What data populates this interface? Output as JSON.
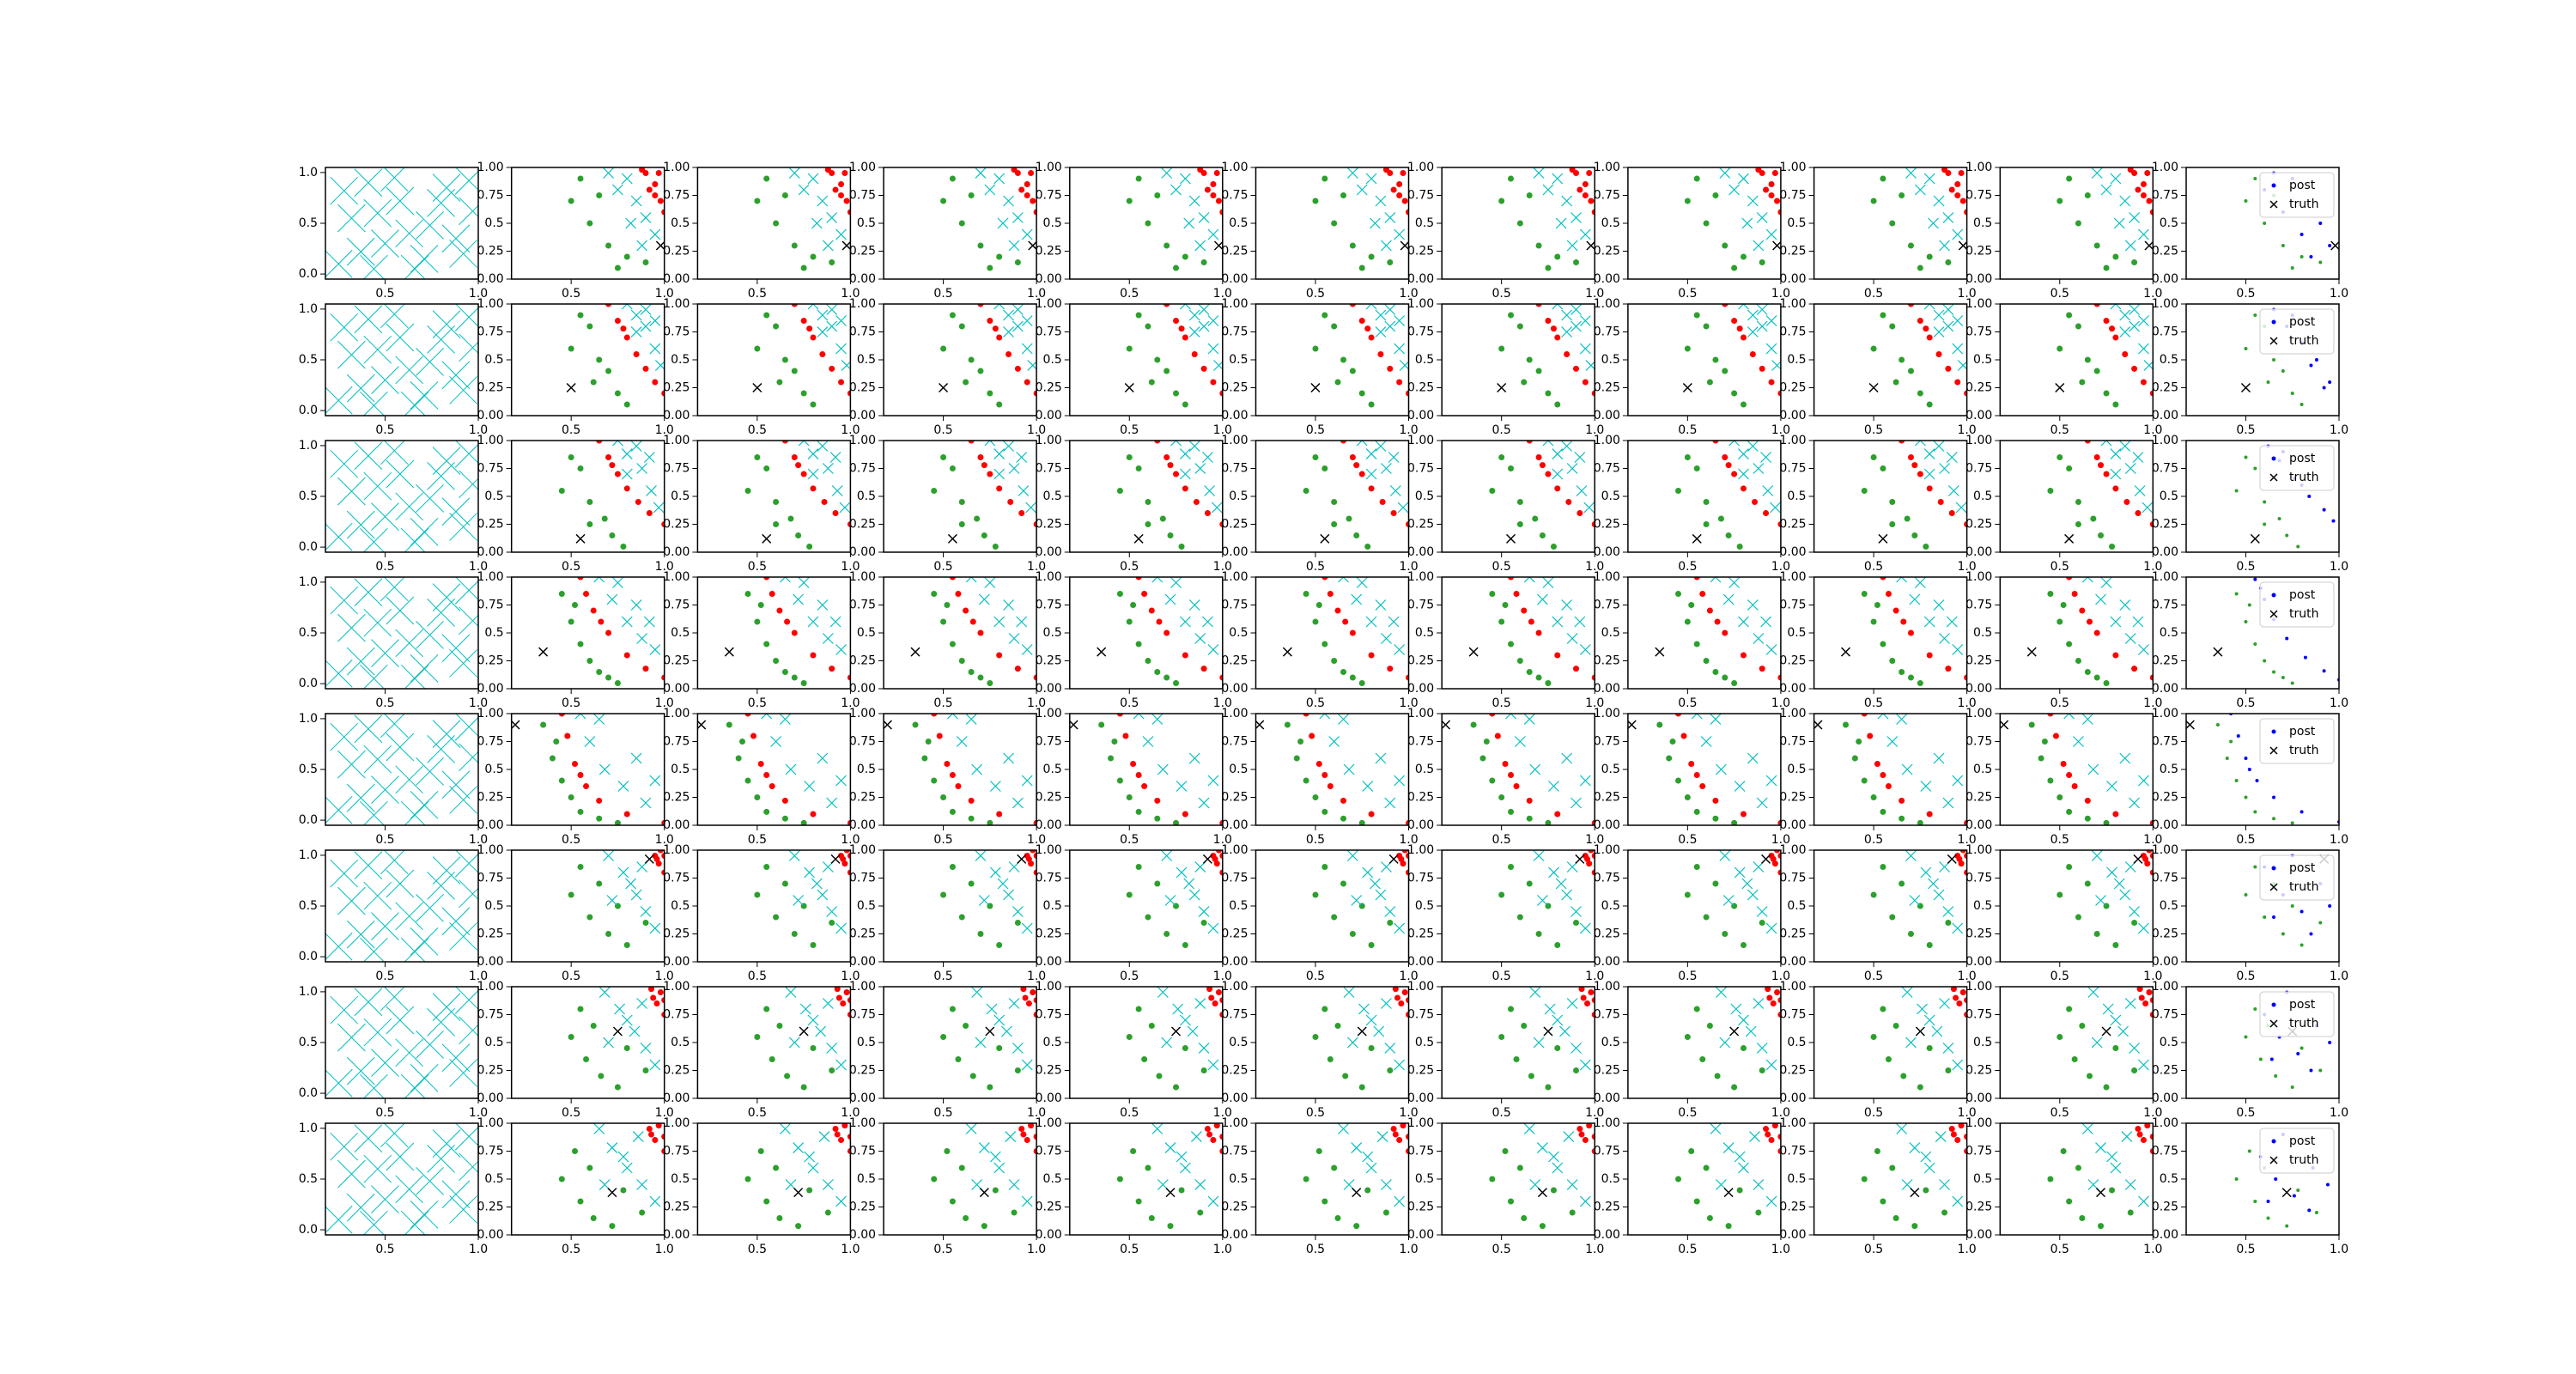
{
  "chart_data": {
    "type": "scatter",
    "first_xlim": [
      0.18,
      1
    ],
    "first_ylim": [
      -0.05,
      1.05
    ],
    "first_xticks": [
      0.5,
      {
        "value": 1,
        "label": "1.0"
      }
    ],
    "first_yticks": [
      {
        "value": 0,
        "label": "0.0"
      },
      0.5,
      {
        "value": 1,
        "label": "1.0"
      }
    ],
    "xlim": [
      0.18,
      1
    ],
    "ylim": [
      0,
      1
    ],
    "xticks": [
      0.5,
      {
        "value": 1,
        "label": "1.0"
      }
    ],
    "yticks": [
      {
        "value": 0,
        "label": "0.00"
      },
      0.25,
      0.5,
      0.75,
      {
        "value": 1,
        "label": "1.00"
      }
    ],
    "legend": [
      {
        "name": "post",
        "color": "#0000ff"
      },
      {
        "name": "truth",
        "color": "#000000"
      }
    ],
    "prior": {
      "color": "#00bfbf",
      "x": [
        0.25,
        0.32,
        0.41,
        0.5,
        0.58,
        0.66,
        0.74,
        0.83,
        0.92,
        0.97,
        0.28,
        0.37,
        0.46,
        0.55,
        0.63,
        0.71,
        0.8,
        0.88,
        0.95,
        0.44
      ],
      "y": [
        0.1,
        0.55,
        0.9,
        0.3,
        0.72,
        0.05,
        0.48,
        0.85,
        0.2,
        0.62,
        0.82,
        0.22,
        0.6,
        0.95,
        0.4,
        0.15,
        0.7,
        0.35,
        0.92,
        0.05
      ]
    },
    "rows": [
      {
        "truth": [
          0.98,
          0.3
        ],
        "samples": [
          {
            "color": "#2ca02c",
            "x": [
              0.5,
              0.6,
              0.7,
              0.55,
              0.8,
              0.65,
              0.75,
              0.9
            ],
            "y": [
              0.7,
              0.5,
              0.3,
              0.9,
              0.2,
              0.75,
              0.1,
              0.15
            ]
          },
          {
            "color": "#00bfbf",
            "x": [
              0.8,
              0.85,
              0.9,
              0.75,
              0.95,
              0.82,
              0.7,
              0.88
            ],
            "y": [
              0.9,
              0.7,
              0.55,
              0.8,
              0.4,
              0.5,
              0.95,
              0.3
            ]
          },
          {
            "color": "#ff0000",
            "x": [
              0.9,
              0.95,
              0.98,
              0.92,
              0.97,
              1.0,
              0.88,
              0.95
            ],
            "y": [
              0.95,
              0.85,
              0.7,
              0.8,
              0.95,
              0.6,
              0.98,
              0.75
            ]
          }
        ],
        "post": {
          "x": [
            0.6,
            0.7,
            0.8,
            0.9,
            0.75,
            0.85,
            0.95,
            0.65
          ],
          "y": [
            0.8,
            0.6,
            0.4,
            0.5,
            0.9,
            0.2,
            0.3,
            0.95
          ]
        }
      },
      {
        "truth": [
          0.5,
          0.25
        ],
        "samples": [
          {
            "color": "#2ca02c",
            "x": [
              0.5,
              0.6,
              0.65,
              0.7,
              0.55,
              0.75,
              0.8,
              0.62
            ],
            "y": [
              0.6,
              0.8,
              0.5,
              0.4,
              0.9,
              0.2,
              0.1,
              0.3
            ]
          },
          {
            "color": "#00bfbf",
            "x": [
              0.8,
              0.85,
              0.9,
              0.95,
              0.9,
              0.98,
              0.85,
              0.95
            ],
            "y": [
              1.0,
              0.9,
              0.8,
              0.6,
              0.95,
              0.45,
              0.75,
              0.85
            ]
          },
          {
            "color": "#ff0000",
            "x": [
              0.7,
              0.75,
              0.8,
              0.85,
              0.9,
              0.95,
              1.0,
              0.78
            ],
            "y": [
              1.0,
              0.85,
              0.7,
              0.55,
              0.42,
              0.3,
              0.2,
              0.78
            ]
          }
        ],
        "post": {
          "x": [
            0.65,
            0.72,
            0.8,
            0.88,
            0.95,
            0.75,
            0.92,
            0.85
          ],
          "y": [
            0.95,
            0.8,
            0.65,
            0.5,
            0.3,
            0.9,
            0.25,
            0.45
          ]
        }
      },
      {
        "truth": [
          0.55,
          0.12
        ],
        "samples": [
          {
            "color": "#2ca02c",
            "x": [
              0.45,
              0.55,
              0.6,
              0.68,
              0.5,
              0.72,
              0.78,
              0.6
            ],
            "y": [
              0.55,
              0.75,
              0.45,
              0.3,
              0.85,
              0.15,
              0.05,
              0.25
            ]
          },
          {
            "color": "#00bfbf",
            "x": [
              0.75,
              0.8,
              0.88,
              0.93,
              0.85,
              0.97,
              0.8,
              0.92
            ],
            "y": [
              1.0,
              0.88,
              0.75,
              0.55,
              0.95,
              0.4,
              0.7,
              0.85
            ]
          },
          {
            "color": "#ff0000",
            "x": [
              0.65,
              0.7,
              0.75,
              0.8,
              0.86,
              0.92,
              1.0,
              0.72
            ],
            "y": [
              1.0,
              0.85,
              0.7,
              0.57,
              0.45,
              0.35,
              0.25,
              0.78
            ]
          }
        ],
        "post": {
          "x": [
            0.62,
            0.68,
            0.76,
            0.84,
            0.92,
            0.7,
            0.97,
            0.8
          ],
          "y": [
            0.95,
            0.82,
            0.66,
            0.5,
            0.38,
            0.9,
            0.28,
            0.6
          ]
        }
      },
      {
        "truth": [
          0.35,
          0.33
        ],
        "samples": [
          {
            "color": "#2ca02c",
            "x": [
              0.45,
              0.5,
              0.55,
              0.6,
              0.65,
              0.7,
              0.75,
              0.52
            ],
            "y": [
              0.85,
              0.6,
              0.4,
              0.25,
              0.15,
              0.1,
              0.05,
              0.75
            ]
          },
          {
            "color": "#00bfbf",
            "x": [
              0.65,
              0.72,
              0.8,
              0.88,
              0.95,
              0.75,
              0.85,
              0.92
            ],
            "y": [
              1.0,
              0.8,
              0.6,
              0.45,
              0.35,
              0.95,
              0.75,
              0.6
            ]
          },
          {
            "color": "#ff0000",
            "x": [
              0.55,
              0.58,
              0.62,
              0.7,
              0.8,
              0.9,
              1.0,
              0.66
            ],
            "y": [
              1.0,
              0.85,
              0.7,
              0.5,
              0.3,
              0.18,
              0.1,
              0.6
            ]
          }
        ],
        "post": {
          "x": [
            0.55,
            0.6,
            0.65,
            0.72,
            0.82,
            0.92,
            1.0,
            0.58
          ],
          "y": [
            0.98,
            0.8,
            0.62,
            0.45,
            0.28,
            0.16,
            0.08,
            0.9
          ]
        }
      },
      {
        "truth": [
          0.2,
          0.9
        ],
        "samples": [
          {
            "color": "#2ca02c",
            "x": [
              0.35,
              0.4,
              0.45,
              0.5,
              0.55,
              0.65,
              0.75,
              0.42
            ],
            "y": [
              0.9,
              0.6,
              0.4,
              0.25,
              0.12,
              0.06,
              0.02,
              0.75
            ]
          },
          {
            "color": "#00bfbf",
            "x": [
              0.55,
              0.6,
              0.68,
              0.78,
              0.9,
              0.65,
              0.85,
              0.95
            ],
            "y": [
              1.0,
              0.75,
              0.5,
              0.35,
              0.2,
              0.95,
              0.6,
              0.4
            ]
          },
          {
            "color": "#ff0000",
            "x": [
              0.45,
              0.48,
              0.52,
              0.58,
              0.65,
              0.8,
              1.0,
              0.55
            ],
            "y": [
              1.0,
              0.8,
              0.55,
              0.35,
              0.22,
              0.1,
              0.02,
              0.45
            ]
          }
        ],
        "post": {
          "x": [
            0.42,
            0.46,
            0.5,
            0.56,
            0.65,
            0.8,
            1.0,
            0.52
          ],
          "y": [
            1.0,
            0.8,
            0.6,
            0.4,
            0.25,
            0.12,
            0.03,
            0.5
          ]
        }
      },
      {
        "truth": [
          0.92,
          0.92
        ],
        "samples": [
          {
            "color": "#2ca02c",
            "x": [
              0.5,
              0.6,
              0.7,
              0.55,
              0.8,
              0.65,
              0.75,
              0.9
            ],
            "y": [
              0.6,
              0.4,
              0.25,
              0.85,
              0.15,
              0.7,
              0.5,
              0.35
            ]
          },
          {
            "color": "#00bfbf",
            "x": [
              0.7,
              0.78,
              0.85,
              0.9,
              0.95,
              0.82,
              0.72,
              0.88
            ],
            "y": [
              0.95,
              0.8,
              0.6,
              0.45,
              0.3,
              0.7,
              0.55,
              0.85
            ]
          },
          {
            "color": "#ff0000",
            "x": [
              0.95,
              0.97,
              1.0,
              0.98,
              0.96,
              1.0
            ],
            "y": [
              0.95,
              0.88,
              0.8,
              1.0,
              0.92,
              0.95
            ]
          }
        ],
        "post": {
          "x": [
            0.6,
            0.7,
            0.8,
            0.9,
            0.75,
            0.85,
            0.95,
            0.65
          ],
          "y": [
            0.85,
            0.6,
            0.45,
            0.7,
            0.95,
            0.25,
            0.5,
            0.4
          ]
        }
      },
      {
        "truth": [
          0.75,
          0.6
        ],
        "samples": [
          {
            "color": "#2ca02c",
            "x": [
              0.5,
              0.58,
              0.66,
              0.55,
              0.75,
              0.62,
              0.8,
              0.9
            ],
            "y": [
              0.55,
              0.35,
              0.2,
              0.8,
              0.1,
              0.65,
              0.45,
              0.25
            ]
          },
          {
            "color": "#00bfbf",
            "x": [
              0.68,
              0.76,
              0.84,
              0.9,
              0.95,
              0.8,
              0.7,
              0.88
            ],
            "y": [
              0.95,
              0.8,
              0.6,
              0.45,
              0.3,
              0.7,
              0.5,
              0.85
            ]
          },
          {
            "color": "#ff0000",
            "x": [
              0.93,
              0.96,
              1.0,
              0.98,
              0.94,
              1.0
            ],
            "y": [
              0.98,
              0.85,
              0.75,
              0.95,
              0.9,
              0.88
            ]
          }
        ],
        "post": {
          "x": [
            0.6,
            0.68,
            0.78,
            0.88,
            0.72,
            0.85,
            0.95,
            0.64
          ],
          "y": [
            0.75,
            0.55,
            0.4,
            0.65,
            0.95,
            0.25,
            0.5,
            0.35
          ]
        }
      },
      {
        "truth": [
          0.72,
          0.38
        ],
        "samples": [
          {
            "color": "#2ca02c",
            "x": [
              0.45,
              0.55,
              0.62,
              0.52,
              0.72,
              0.6,
              0.78,
              0.88
            ],
            "y": [
              0.5,
              0.3,
              0.15,
              0.75,
              0.08,
              0.6,
              0.4,
              0.2
            ]
          },
          {
            "color": "#00bfbf",
            "x": [
              0.65,
              0.72,
              0.8,
              0.88,
              0.95,
              0.78,
              0.68,
              0.86
            ],
            "y": [
              0.95,
              0.78,
              0.6,
              0.45,
              0.3,
              0.7,
              0.45,
              0.88
            ]
          },
          {
            "color": "#ff0000",
            "x": [
              0.92,
              0.95,
              1.0,
              0.97,
              0.93,
              1.0
            ],
            "y": [
              0.95,
              0.85,
              0.75,
              0.98,
              0.9,
              0.88
            ]
          }
        ],
        "post": {
          "x": [
            0.58,
            0.66,
            0.76,
            0.86,
            0.7,
            0.84,
            0.94,
            0.62
          ],
          "y": [
            0.7,
            0.5,
            0.35,
            0.6,
            0.9,
            0.22,
            0.45,
            0.3
          ]
        }
      }
    ]
  }
}
